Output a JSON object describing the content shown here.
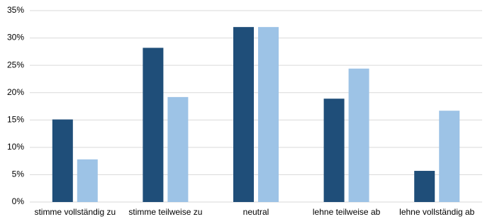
{
  "chart_data": {
    "type": "bar",
    "categories": [
      "stimme vollständig zu",
      "stimme teilweise zu",
      "neutral",
      "lehne teilweise ab",
      "lehne vollständig ab"
    ],
    "series": [
      {
        "color": "#1f4e79",
        "values": [
          15.1,
          28.2,
          32,
          18.9,
          5.7
        ]
      },
      {
        "color": "#9dc3e6",
        "values": [
          7.8,
          19.2,
          32,
          24.4,
          16.7
        ]
      }
    ],
    "ylim": [
      0,
      35
    ],
    "yticks": [
      {
        "value": 0,
        "label": "0%"
      },
      {
        "value": 5,
        "label": "5%"
      },
      {
        "value": 10,
        "label": "10%"
      },
      {
        "value": 15,
        "label": "15%"
      },
      {
        "value": 20,
        "label": "20%"
      },
      {
        "value": 25,
        "label": "25%"
      },
      {
        "value": 30,
        "label": "30%"
      },
      {
        "value": 35,
        "label": "35%"
      }
    ],
    "grid": true
  }
}
